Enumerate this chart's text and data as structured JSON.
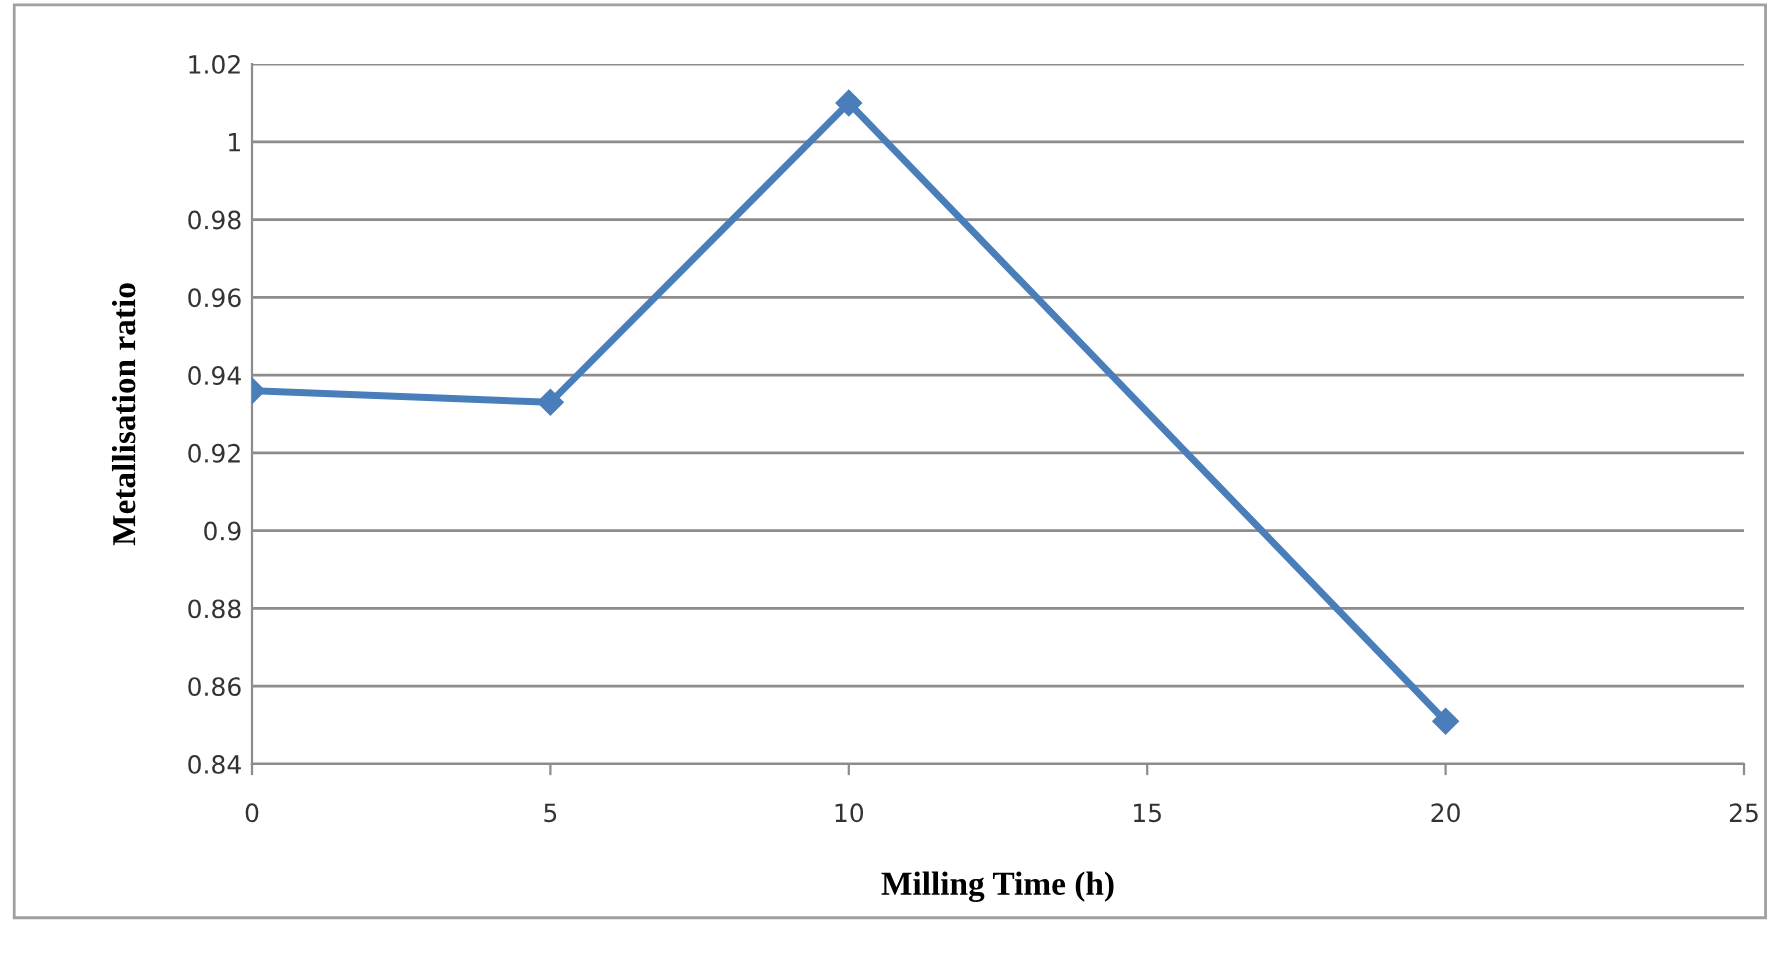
{
  "chart_data": {
    "type": "line",
    "xlabel": "Milling Time (h)",
    "ylabel": "Metallisation ratio",
    "x": [
      0,
      5,
      10,
      20
    ],
    "series": [
      {
        "color": "#4a7ebb",
        "values": [
          0.936,
          0.933,
          1.01,
          0.851
        ]
      }
    ],
    "xlim": [
      0,
      25
    ],
    "xticks": [
      0,
      5,
      10,
      15,
      20,
      25
    ],
    "ylim": [
      0.84,
      1.02
    ],
    "yticks": [
      {
        "value": 0.84,
        "label": "0.84"
      },
      {
        "value": 0.86,
        "label": "0.86"
      },
      {
        "value": 0.88,
        "label": "0.88"
      },
      {
        "value": 0.9,
        "label": "0.9"
      },
      {
        "value": 0.92,
        "label": "0.92"
      },
      {
        "value": 0.94,
        "label": "0.94"
      },
      {
        "value": 0.96,
        "label": "0.96"
      },
      {
        "value": 0.98,
        "label": "0.98"
      },
      {
        "value": 1,
        "label": "1"
      },
      {
        "value": 1.02,
        "label": "1.02"
      }
    ],
    "grid": "y",
    "marker": "diamond",
    "line_style": "solid"
  }
}
